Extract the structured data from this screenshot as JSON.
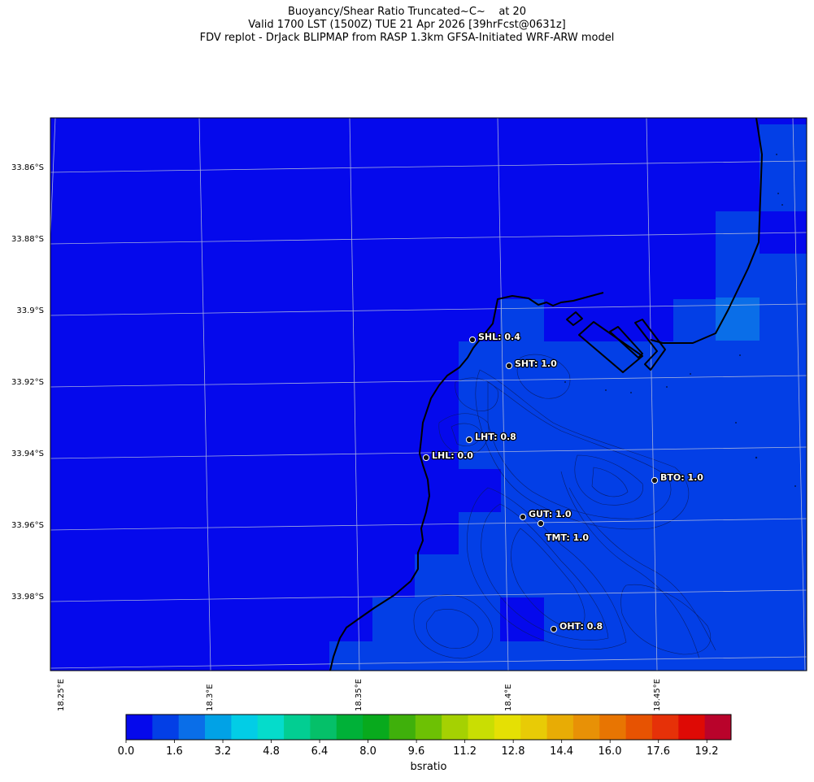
{
  "title": {
    "line1": "Buoyancy/Shear Ratio Truncated~C~    at 20",
    "line2": "Valid 1700 LST (1500Z) TUE 21 Apr 2026 [39hrFcst@0631z]",
    "line3": "FDV replot - DrJack BLIPMAP from RASP 1.3km GFSA-Initiated WRF-ARW model"
  },
  "colors": {
    "background_field": "#0509ec",
    "field_level_1": "#033fe6",
    "field_level_2": "#0a6ee8",
    "coastline": "#000000",
    "graticule": "#b6bedd"
  },
  "latitude_labels": [
    "33.86°S",
    "33.88°S",
    "33.9°S",
    "33.92°S",
    "33.94°S",
    "33.96°S",
    "33.98°S"
  ],
  "longitude_labels": [
    "18.25°E",
    "18.3°E",
    "18.35°E",
    "18.4°E",
    "18.45°E"
  ],
  "stations": [
    {
      "id": "SHL",
      "value": "0.4",
      "label": "SHL: 0.4"
    },
    {
      "id": "SHT",
      "value": "1.0",
      "label": "SHT: 1.0"
    },
    {
      "id": "LHT",
      "value": "0.8",
      "label": "LHT: 0.8"
    },
    {
      "id": "LHL",
      "value": "0.0",
      "label": "LHL: 0.0"
    },
    {
      "id": "BTO",
      "value": "1.0",
      "label": "BTO: 1.0"
    },
    {
      "id": "GUT",
      "value": "1.0",
      "label": "GUT: 1.0"
    },
    {
      "id": "TMT",
      "value": "1.0",
      "label": "TMT: 1.0"
    },
    {
      "id": "OHT",
      "value": "0.8",
      "label": "OHT: 0.8"
    }
  ],
  "colorbar": {
    "label": "bsratio",
    "ticks": [
      "0.0",
      "1.6",
      "3.2",
      "4.8",
      "6.4",
      "8.0",
      "9.6",
      "11.2",
      "12.8",
      "14.4",
      "16.0",
      "17.6",
      "19.2"
    ],
    "range": [
      0.0,
      20.0
    ],
    "colors": [
      "#0509ec",
      "#033fe6",
      "#0a6ee8",
      "#01a2e6",
      "#02cde6",
      "#05dccb",
      "#02ce92",
      "#05c069",
      "#00b138",
      "#08aa1d",
      "#3fb00b",
      "#6dc104",
      "#a5d102",
      "#c9de03",
      "#e5e004",
      "#e8cb06",
      "#e8ac05",
      "#e89106",
      "#e87502",
      "#e75302",
      "#e63108",
      "#de0a05",
      "#b9032b"
    ]
  }
}
